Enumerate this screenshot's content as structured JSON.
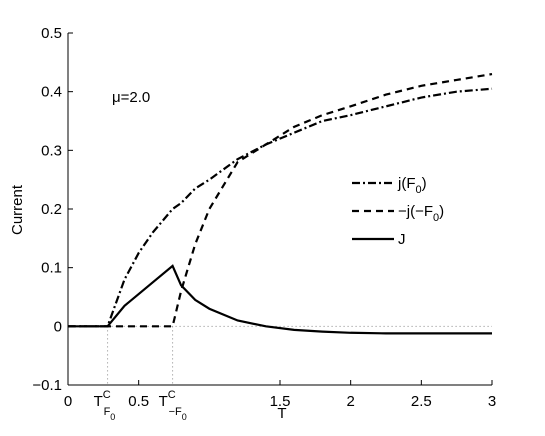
{
  "chart_data": {
    "type": "line",
    "ylabel": "Current",
    "xlabel": "T",
    "annotation": "μ=2.0",
    "x": [
      0,
      0.28,
      0.4,
      0.5,
      0.6,
      0.74,
      0.8,
      0.9,
      1.0,
      1.2,
      1.4,
      1.6,
      1.8,
      2.0,
      2.25,
      2.5,
      2.75,
      3.0
    ],
    "series": [
      {
        "name": "j(F0)",
        "color": "#000000",
        "dash": "dashdot",
        "values": [
          0,
          0,
          0.08,
          0.125,
          0.16,
          0.2,
          0.21,
          0.235,
          0.25,
          0.285,
          0.31,
          0.33,
          0.35,
          0.36,
          0.375,
          0.39,
          0.4,
          0.405
        ]
      },
      {
        "name": "−j(−F0)",
        "color": "#000000",
        "dash": "dashed",
        "values": [
          0,
          0,
          0,
          0,
          0,
          0,
          0.06,
          0.14,
          0.2,
          0.28,
          0.31,
          0.34,
          0.36,
          0.375,
          0.395,
          0.41,
          0.42,
          0.43
        ]
      },
      {
        "name": "J",
        "color": "#000000",
        "dash": "solid",
        "values": [
          0,
          0,
          0.035,
          0.055,
          0.075,
          0.103,
          0.07,
          0.045,
          0.03,
          0.01,
          0,
          -0.006,
          -0.009,
          -0.011,
          -0.012,
          -0.012,
          -0.012,
          -0.012
        ]
      }
    ],
    "critical_points": [
      {
        "x": 0.28,
        "base": "T",
        "sup": "C",
        "sub": "F",
        "subsub": "0"
      },
      {
        "x": 0.74,
        "base": "T",
        "sup": "C",
        "sub": "−F",
        "subsub": "0"
      }
    ],
    "reference_y": 0,
    "xlim": [
      0,
      3
    ],
    "ylim": [
      -0.1,
      0.5
    ],
    "xticks": [
      0,
      0.5,
      1.5,
      2,
      2.5,
      3
    ],
    "yticks": [
      {
        "value": -0.1,
        "label": "−0.1"
      },
      0,
      0.1,
      0.2,
      0.3,
      0.4,
      0.5
    ],
    "grid": false
  }
}
